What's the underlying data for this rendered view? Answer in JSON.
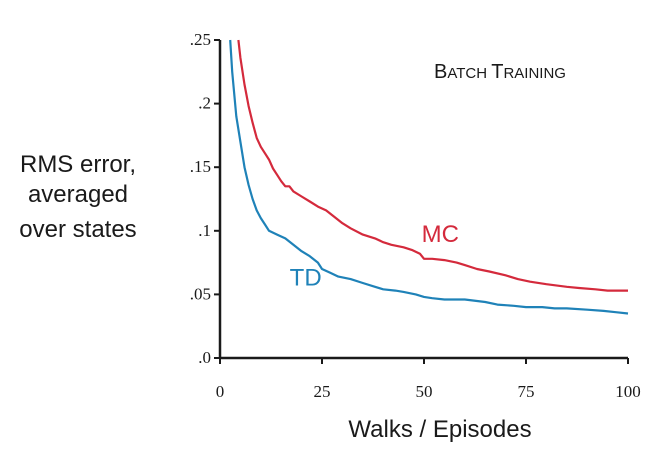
{
  "chart_data": {
    "type": "line",
    "title": "Batch Training",
    "xlabel": "Walks / Episodes",
    "ylabel_lines": [
      "RMS error,",
      "averaged",
      "over states"
    ],
    "xlim": [
      0,
      100
    ],
    "ylim": [
      0,
      0.25
    ],
    "xticks": [
      {
        "value": 0,
        "label": "0"
      },
      {
        "value": 25,
        "label": "25"
      },
      {
        "value": 50,
        "label": "50"
      },
      {
        "value": 75,
        "label": "75"
      },
      {
        "value": 100,
        "label": "100"
      }
    ],
    "yticks": [
      {
        "value": 0,
        "label": ".0"
      },
      {
        "value": 0.05,
        "label": ".05"
      },
      {
        "value": 0.1,
        "label": ".1"
      },
      {
        "value": 0.15,
        "label": ".15"
      },
      {
        "value": 0.2,
        "label": ".2"
      },
      {
        "value": 0.25,
        "label": ".25"
      }
    ],
    "grid": false,
    "series": [
      {
        "name": "MC",
        "color": "#d42a3c",
        "points": [
          [
            4.5,
            0.25
          ],
          [
            5,
            0.236
          ],
          [
            6,
            0.215
          ],
          [
            7,
            0.198
          ],
          [
            8,
            0.185
          ],
          [
            9,
            0.173
          ],
          [
            10,
            0.166
          ],
          [
            11,
            0.161
          ],
          [
            12,
            0.156
          ],
          [
            13,
            0.149
          ],
          [
            14,
            0.144
          ],
          [
            15,
            0.139
          ],
          [
            16,
            0.135
          ],
          [
            17,
            0.135
          ],
          [
            18,
            0.131
          ],
          [
            20,
            0.127
          ],
          [
            22,
            0.123
          ],
          [
            24,
            0.119
          ],
          [
            26,
            0.116
          ],
          [
            28,
            0.111
          ],
          [
            30,
            0.106
          ],
          [
            32,
            0.102
          ],
          [
            35,
            0.097
          ],
          [
            38,
            0.094
          ],
          [
            40,
            0.091
          ],
          [
            42,
            0.089
          ],
          [
            45,
            0.087
          ],
          [
            47,
            0.085
          ],
          [
            49,
            0.082
          ],
          [
            50,
            0.078
          ],
          [
            52,
            0.078
          ],
          [
            55,
            0.077
          ],
          [
            58,
            0.075
          ],
          [
            60,
            0.073
          ],
          [
            63,
            0.07
          ],
          [
            66,
            0.068
          ],
          [
            70,
            0.065
          ],
          [
            73,
            0.062
          ],
          [
            76,
            0.06
          ],
          [
            80,
            0.058
          ],
          [
            85,
            0.056
          ],
          [
            88,
            0.055
          ],
          [
            92,
            0.054
          ],
          [
            95,
            0.053
          ],
          [
            98,
            0.053
          ],
          [
            100,
            0.053
          ]
        ]
      },
      {
        "name": "TD",
        "color": "#1f82b8",
        "points": [
          [
            2.5,
            0.25
          ],
          [
            3,
            0.225
          ],
          [
            4,
            0.19
          ],
          [
            5,
            0.17
          ],
          [
            6,
            0.15
          ],
          [
            7,
            0.136
          ],
          [
            8,
            0.125
          ],
          [
            9,
            0.116
          ],
          [
            10,
            0.11
          ],
          [
            11,
            0.105
          ],
          [
            12,
            0.1
          ],
          [
            14,
            0.097
          ],
          [
            16,
            0.094
          ],
          [
            18,
            0.089
          ],
          [
            20,
            0.084
          ],
          [
            22,
            0.08
          ],
          [
            24,
            0.075
          ],
          [
            25,
            0.07
          ],
          [
            27,
            0.067
          ],
          [
            29,
            0.064
          ],
          [
            32,
            0.062
          ],
          [
            35,
            0.059
          ],
          [
            38,
            0.056
          ],
          [
            40,
            0.054
          ],
          [
            43,
            0.053
          ],
          [
            45,
            0.052
          ],
          [
            48,
            0.05
          ],
          [
            50,
            0.048
          ],
          [
            52,
            0.047
          ],
          [
            55,
            0.046
          ],
          [
            60,
            0.046
          ],
          [
            65,
            0.044
          ],
          [
            68,
            0.042
          ],
          [
            72,
            0.041
          ],
          [
            75,
            0.04
          ],
          [
            79,
            0.04
          ],
          [
            82,
            0.039
          ],
          [
            85,
            0.039
          ],
          [
            90,
            0.038
          ],
          [
            94,
            0.037
          ],
          [
            97,
            0.036
          ],
          [
            100,
            0.035
          ]
        ]
      }
    ],
    "annotations": [
      {
        "text": "MC",
        "x": 54,
        "y": 0.091,
        "color": "#d42a3c"
      },
      {
        "text": "TD",
        "x": 21,
        "y": 0.057,
        "color": "#1f82b8"
      }
    ]
  }
}
